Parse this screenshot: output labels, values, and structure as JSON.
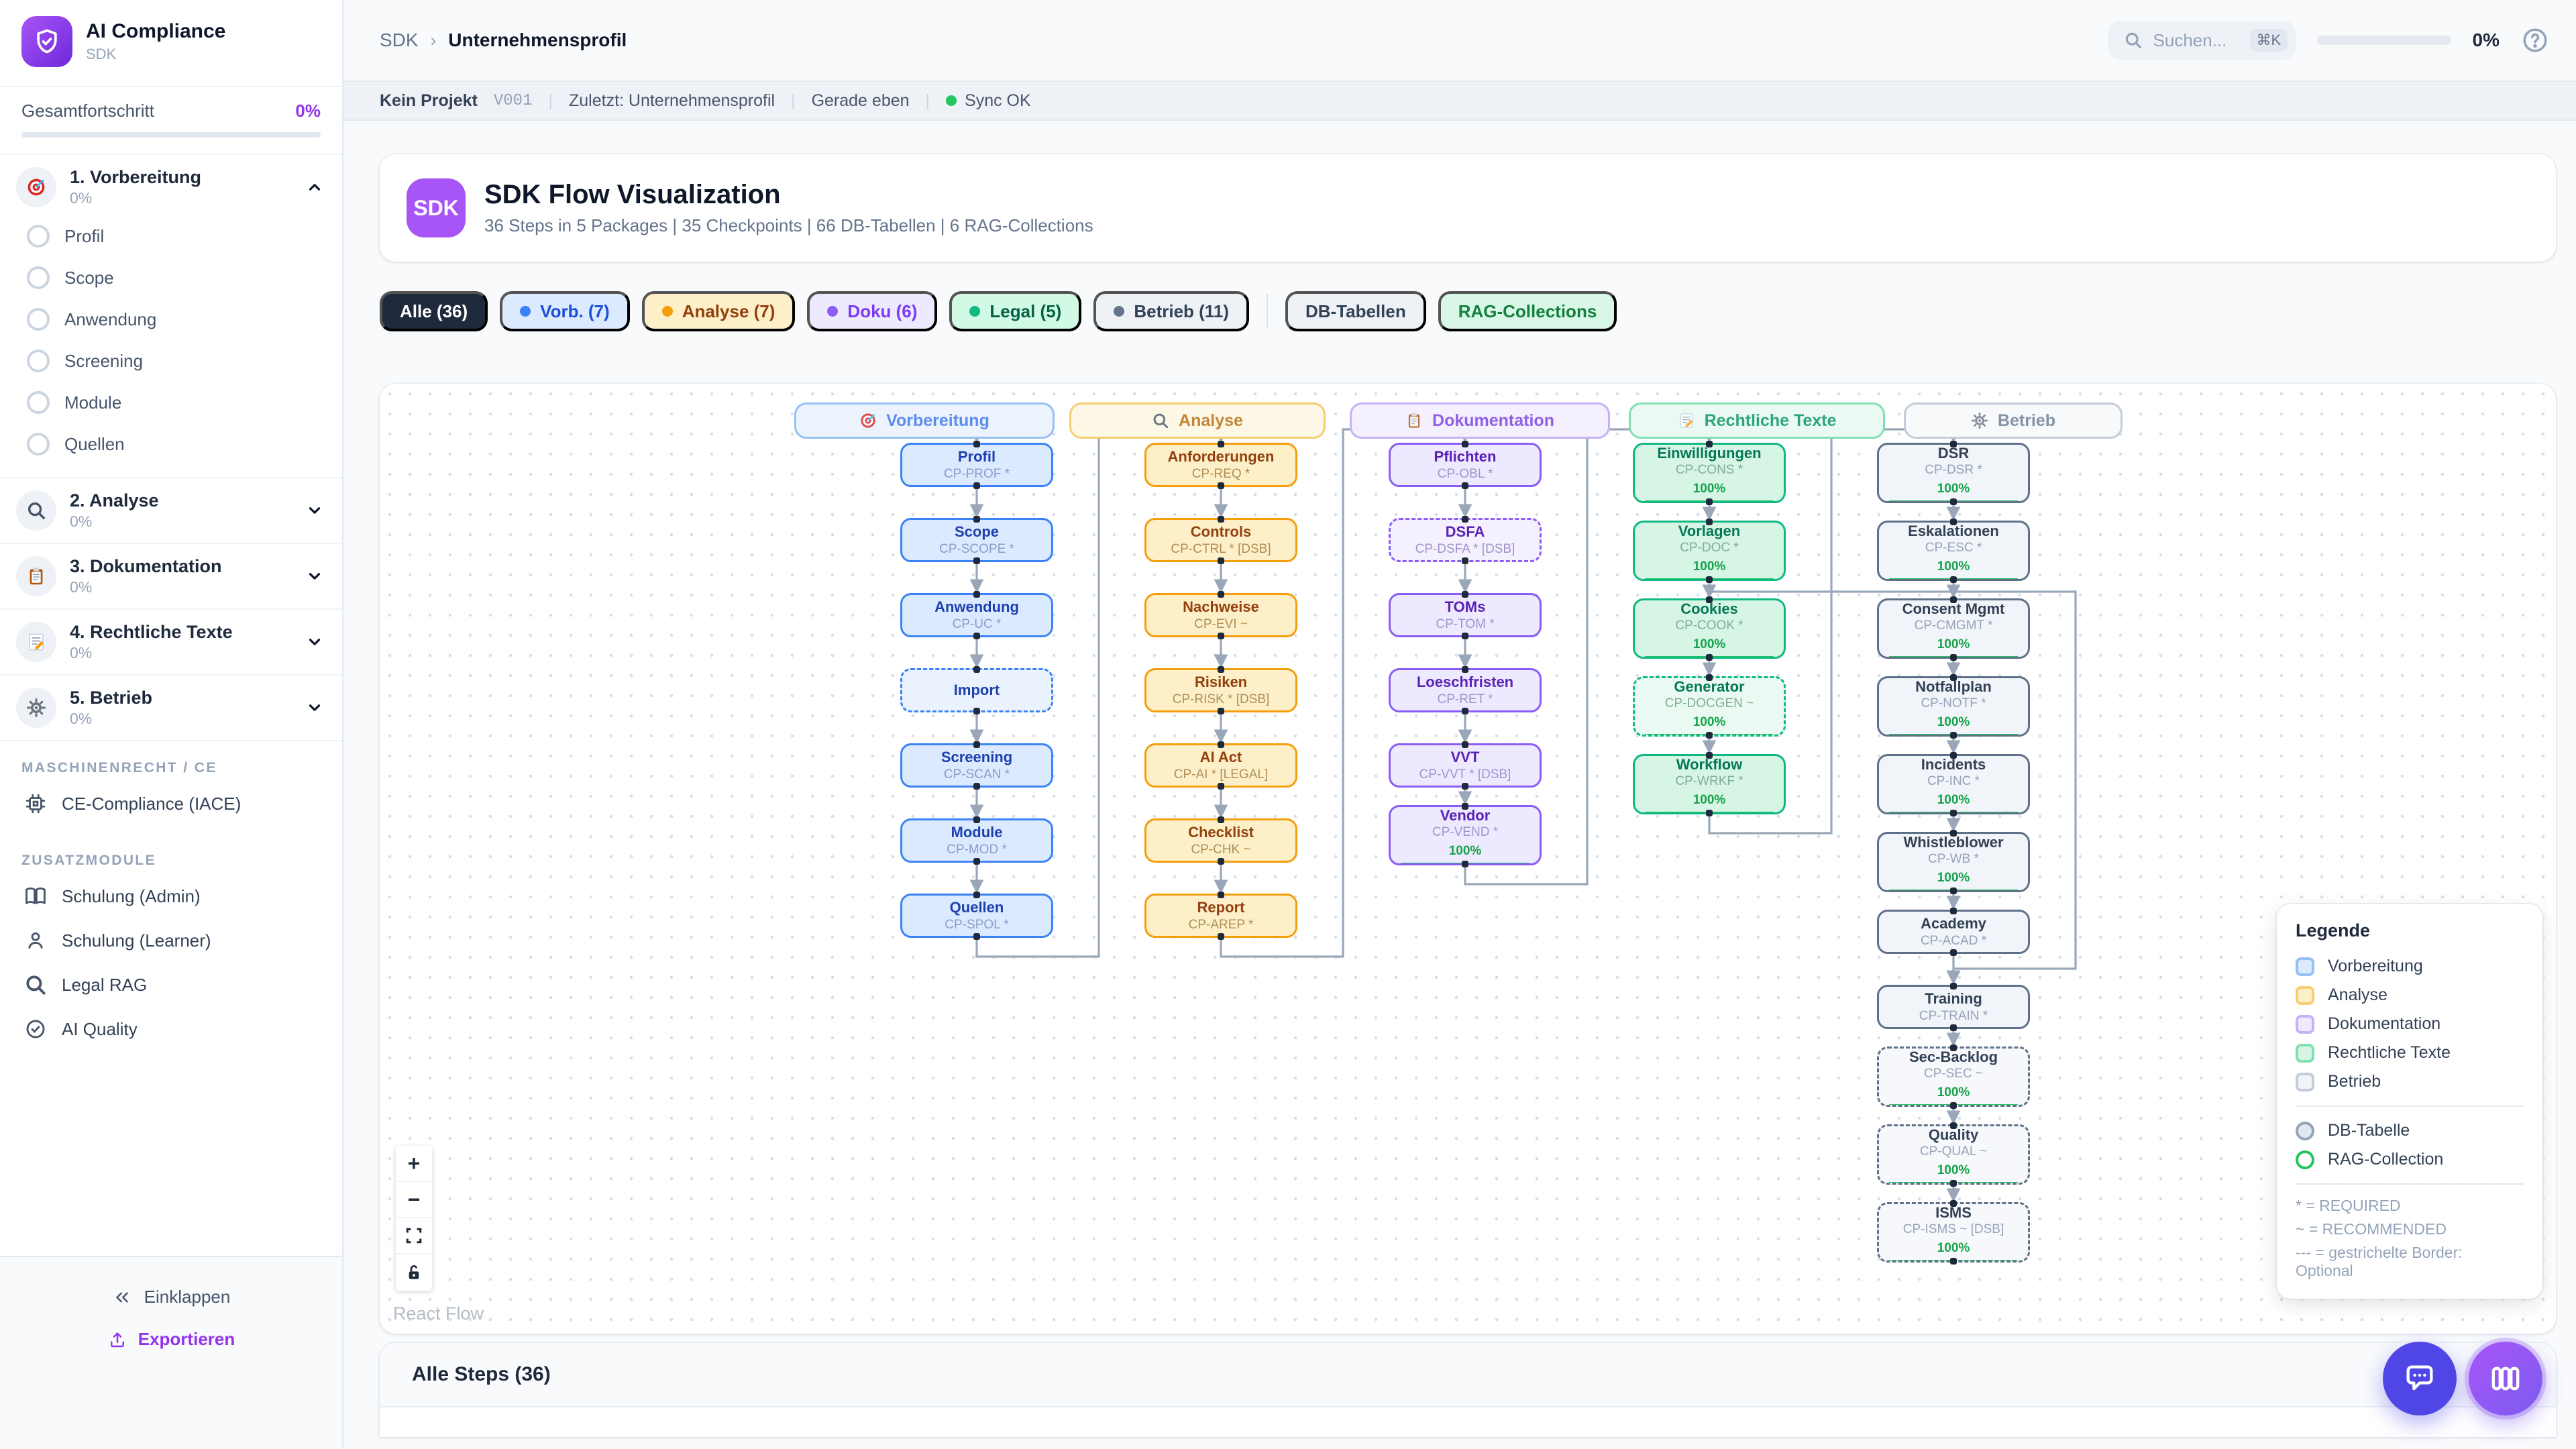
{
  "app": {
    "title": "AI Compliance",
    "subtitle": "SDK"
  },
  "sidebar": {
    "progress": {
      "label": "Gesamtfortschritt",
      "value": "0%"
    },
    "sections": [
      {
        "label": "1. Vorbereitung",
        "pct": "0%",
        "icon": "target-icon",
        "expanded": true,
        "items": [
          "Profil",
          "Scope",
          "Anwendung",
          "Screening",
          "Module",
          "Quellen"
        ]
      },
      {
        "label": "2. Analyse",
        "pct": "0%",
        "icon": "search-icon"
      },
      {
        "label": "3. Dokumentation",
        "pct": "0%",
        "icon": "clipboard-icon"
      },
      {
        "label": "4. Rechtliche Texte",
        "pct": "0%",
        "icon": "memo-icon"
      },
      {
        "label": "5. Betrieb",
        "pct": "0%",
        "icon": "gear-icon"
      }
    ],
    "group1_label": "MASCHINENRECHT / CE",
    "group1_items": [
      {
        "label": "CE-Compliance (IACE)",
        "icon": "cpu-icon"
      }
    ],
    "group2_label": "ZUSATZMODULE",
    "group2_items": [
      {
        "label": "Schulung (Admin)",
        "icon": "book-icon"
      },
      {
        "label": "Schulung (Learner)",
        "icon": "user-icon"
      },
      {
        "label": "Legal RAG",
        "icon": "search-icon"
      },
      {
        "label": "AI Quality",
        "icon": "check-circle-icon"
      }
    ],
    "collapse_label": "Einklappen",
    "export_label": "Exportieren"
  },
  "topbar": {
    "breadcrumb_root": "SDK",
    "breadcrumb_sep": "›",
    "breadcrumb_current": "Unternehmensprofil",
    "search_placeholder": "Suchen...",
    "search_kbd": "⌘K",
    "progress_value": "0%"
  },
  "statusbar": {
    "project": "Kein Projekt",
    "version": "V001",
    "last": "Zuletzt: Unternehmensprofil",
    "time": "Gerade eben",
    "sync": "Sync OK",
    "separator": "|"
  },
  "header": {
    "badge": "SDK",
    "title": "SDK Flow Visualization",
    "subtitle": "36 Steps in 5 Packages | 35 Checkpoints | 66 DB-Tabellen | 6 RAG-Collections"
  },
  "filters": [
    {
      "label": "Alle (36)",
      "style": "dark",
      "dot": false
    },
    {
      "label": "Vorb. (7)",
      "style": "blue",
      "dot": true
    },
    {
      "label": "Analyse (7)",
      "style": "amber",
      "dot": true
    },
    {
      "label": "Doku (6)",
      "style": "violet",
      "dot": true
    },
    {
      "label": "Legal (5)",
      "style": "green",
      "dot": true
    },
    {
      "label": "Betrieb (11)",
      "style": "slate",
      "dot": true
    },
    {
      "label": "DB-Tabellen",
      "style": "plain",
      "dot": false,
      "divider_before": true
    },
    {
      "label": "RAG-Collections",
      "style": "rag",
      "dot": false
    }
  ],
  "flow": {
    "columns": [
      {
        "label": "Vorbereitung",
        "icon": "target-icon",
        "color": "blue",
        "nodes": [
          {
            "title": "Profil",
            "code": "CP-PROF *"
          },
          {
            "title": "Scope",
            "code": "CP-SCOPE *"
          },
          {
            "title": "Anwendung",
            "code": "CP-UC *"
          },
          {
            "title": "Import",
            "code": "",
            "dashed": true
          },
          {
            "title": "Screening",
            "code": "CP-SCAN *"
          },
          {
            "title": "Module",
            "code": "CP-MOD *"
          },
          {
            "title": "Quellen",
            "code": "CP-SPOL *"
          }
        ]
      },
      {
        "label": "Analyse",
        "icon": "search-icon",
        "color": "amber",
        "nodes": [
          {
            "title": "Anforderungen",
            "code": "CP-REQ *"
          },
          {
            "title": "Controls",
            "code": "CP-CTRL * [DSB]"
          },
          {
            "title": "Nachweise",
            "code": "CP-EVI ~"
          },
          {
            "title": "Risiken",
            "code": "CP-RISK * [DSB]"
          },
          {
            "title": "AI Act",
            "code": "CP-AI * [LEGAL]"
          },
          {
            "title": "Checklist",
            "code": "CP-CHK ~"
          },
          {
            "title": "Report",
            "code": "CP-AREP *"
          }
        ]
      },
      {
        "label": "Dokumentation",
        "icon": "clipboard-icon",
        "color": "violet",
        "nodes": [
          {
            "title": "Pflichten",
            "code": "CP-OBL *"
          },
          {
            "title": "DSFA",
            "code": "CP-DSFA * [DSB]",
            "dashed": true
          },
          {
            "title": "TOMs",
            "code": "CP-TOM *"
          },
          {
            "title": "Loeschfristen",
            "code": "CP-RET *"
          },
          {
            "title": "VVT",
            "code": "CP-VVT * [DSB]"
          },
          {
            "title": "Vendor",
            "code": "CP-VEND *",
            "progress": "100%"
          }
        ]
      },
      {
        "label": "Rechtliche Texte",
        "icon": "memo-icon",
        "color": "green",
        "nodes": [
          {
            "title": "Einwilligungen",
            "code": "CP-CONS *",
            "progress": "100%"
          },
          {
            "title": "Vorlagen",
            "code": "CP-DOC *",
            "progress": "100%"
          },
          {
            "title": "Cookies",
            "code": "CP-COOK *",
            "progress": "100%"
          },
          {
            "title": "Generator",
            "code": "CP-DOCGEN ~",
            "progress": "100%",
            "dashed": true
          },
          {
            "title": "Workflow",
            "code": "CP-WRKF *",
            "progress": "100%"
          }
        ]
      },
      {
        "label": "Betrieb",
        "icon": "gear-icon",
        "color": "slate",
        "nodes": [
          {
            "title": "DSR",
            "code": "CP-DSR *",
            "progress": "100%"
          },
          {
            "title": "Eskalationen",
            "code": "CP-ESC *",
            "progress": "100%"
          },
          {
            "title": "Consent Mgmt",
            "code": "CP-CMGMT *",
            "progress": "100%"
          },
          {
            "title": "Notfallplan",
            "code": "CP-NOTF *",
            "progress": "100%"
          },
          {
            "title": "Incidents",
            "code": "CP-INC *",
            "progress": "100%"
          },
          {
            "title": "Whistleblower",
            "code": "CP-WB *",
            "progress": "100%"
          },
          {
            "title": "Academy",
            "code": "CP-ACAD *"
          },
          {
            "title": "Training",
            "code": "CP-TRAIN *"
          },
          {
            "title": "Sec-Backlog",
            "code": "CP-SEC ~",
            "progress": "100%",
            "dashed": true
          },
          {
            "title": "Quality",
            "code": "CP-QUAL ~",
            "progress": "100%",
            "dashed": true
          },
          {
            "title": "ISMS",
            "code": "CP-ISMS ~ [DSB]",
            "progress": "100%",
            "dashed": true
          }
        ]
      }
    ]
  },
  "legend": {
    "title": "Legende",
    "packages": [
      {
        "label": "Vorbereitung",
        "color": "blue"
      },
      {
        "label": "Analyse",
        "color": "amber"
      },
      {
        "label": "Dokumentation",
        "color": "violet"
      },
      {
        "label": "Rechtliche Texte",
        "color": "green"
      },
      {
        "label": "Betrieb",
        "color": "slate"
      }
    ],
    "shapes": [
      {
        "label": "DB-Tabelle",
        "fill": "#e2e8f0",
        "border": "#94a3b8"
      },
      {
        "label": "RAG-Collection",
        "fill": "#ffffff",
        "border": "#22c55e"
      }
    ],
    "notes": [
      "* = REQUIRED",
      "~ = RECOMMENDED",
      "--- = gestrichelte Border: Optional"
    ]
  },
  "canvas": {
    "attribution": "React Flow"
  },
  "bottom_panel": {
    "title": "Alle Steps (36)"
  }
}
